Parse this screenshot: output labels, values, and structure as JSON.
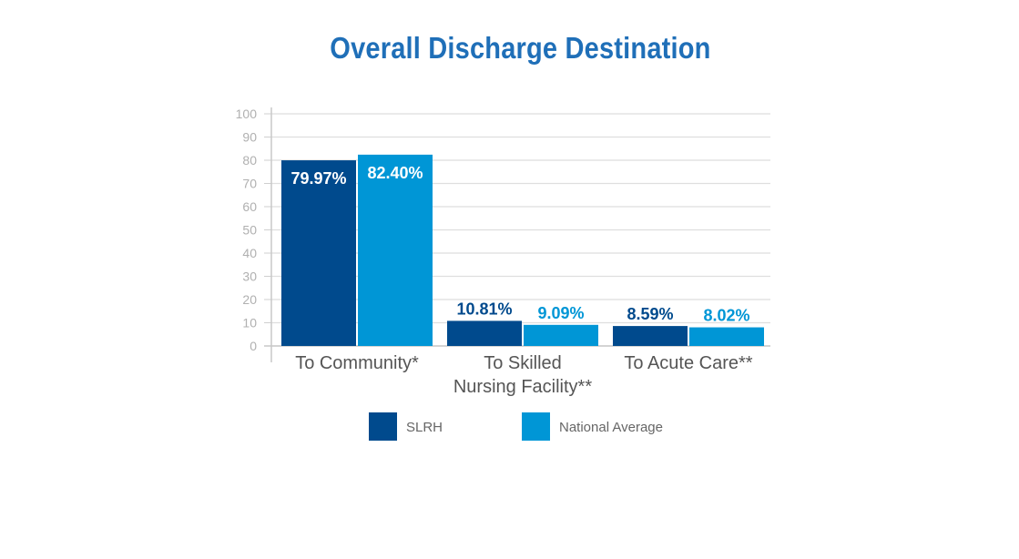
{
  "chart_data": {
    "type": "bar",
    "title": "Overall Discharge Destination",
    "categories": [
      [
        "To Community*"
      ],
      [
        "To Skilled",
        "Nursing Facility**"
      ],
      [
        "To Acute Care**"
      ]
    ],
    "series": [
      {
        "name": "SLRH",
        "color": "#004a8d",
        "values": [
          79.97,
          10.81,
          8.59
        ],
        "labels": [
          "79.97%",
          "10.81%",
          "8.59%"
        ]
      },
      {
        "name": "National Average",
        "color": "#0096d6",
        "values": [
          82.4,
          9.09,
          8.02
        ],
        "labels": [
          "82.40%",
          "9.09%",
          "8.02%"
        ]
      }
    ],
    "yticks": [
      "0",
      "10",
      "20",
      "30",
      "40",
      "50",
      "60",
      "70",
      "80",
      "90",
      "100"
    ],
    "ylim": [
      0,
      100
    ],
    "grid": true,
    "legend": "bottom"
  }
}
